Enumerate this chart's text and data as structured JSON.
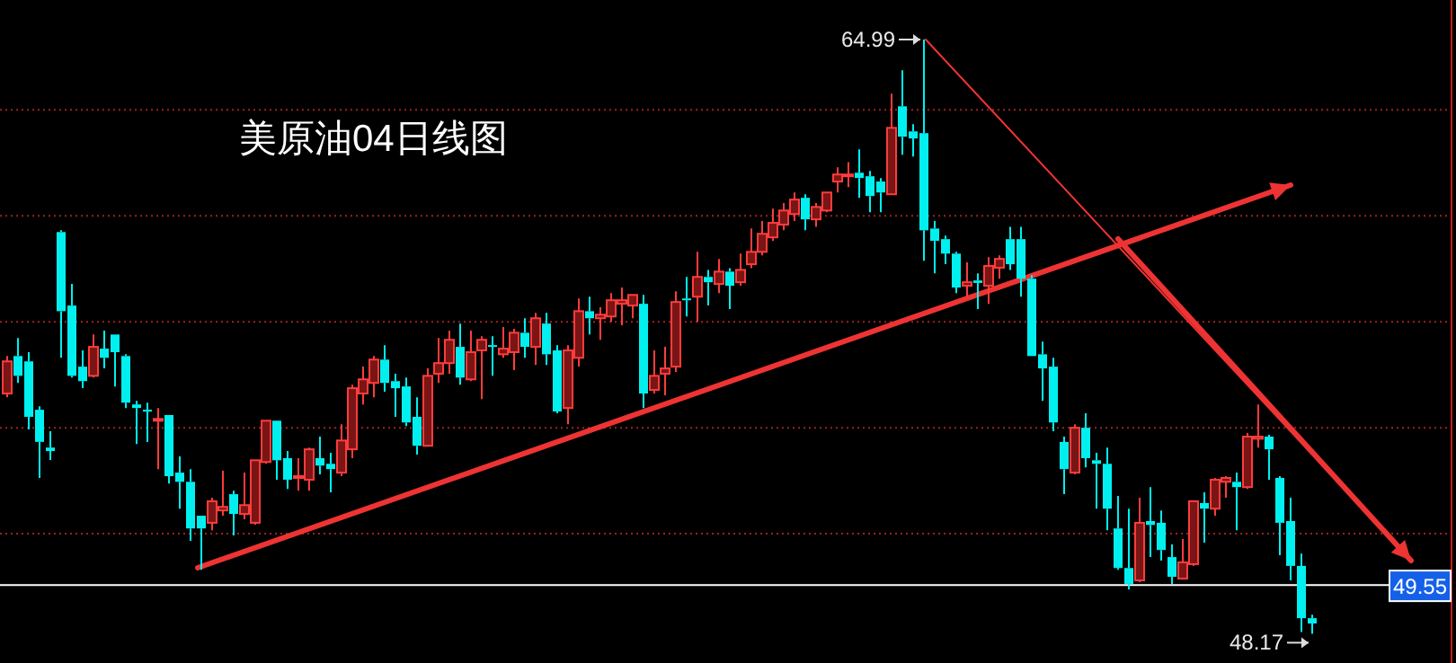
{
  "chart_data": {
    "type": "candlestick",
    "title": "美原油04日线图",
    "categories": [
      null,
      null,
      null,
      null,
      null,
      null,
      null,
      null,
      null,
      null,
      null,
      null,
      null,
      null,
      null,
      null,
      null,
      null,
      null,
      null,
      null,
      null,
      null,
      null,
      null,
      null,
      null,
      null,
      null,
      null,
      null,
      null,
      null,
      null,
      null,
      null,
      null,
      null,
      null,
      null,
      null,
      null,
      null,
      null,
      null,
      null,
      null,
      null,
      null,
      null,
      null,
      null,
      null,
      null,
      null,
      null,
      null,
      null,
      null,
      null,
      null,
      null,
      null,
      null,
      null,
      null,
      null,
      null,
      null,
      null,
      null,
      null,
      null,
      null,
      null,
      null,
      null,
      null,
      null,
      null,
      null,
      null,
      null,
      null,
      null,
      null,
      null,
      null,
      null,
      null,
      null,
      null,
      null,
      null,
      null,
      null,
      null,
      null,
      null,
      null,
      null,
      null,
      null,
      null,
      null,
      null,
      null,
      null,
      null,
      null,
      null,
      null,
      null,
      null,
      null,
      null,
      null,
      null,
      null,
      null,
      null,
      null
    ],
    "ohlc": [
      [
        54.97,
        56.03,
        54.86,
        55.88
      ],
      [
        56.03,
        56.54,
        55.27,
        55.47
      ],
      [
        55.88,
        56.14,
        53.95,
        54.31
      ],
      [
        54.51,
        54.61,
        52.58,
        53.6
      ],
      [
        53.44,
        53.9,
        53.09,
        53.34
      ],
      [
        59.54,
        59.59,
        55.98,
        57.3
      ],
      [
        57.46,
        58.07,
        55.42,
        55.47
      ],
      [
        55.73,
        56.19,
        55.12,
        55.32
      ],
      [
        55.47,
        56.64,
        55.42,
        56.29
      ],
      [
        56.24,
        56.75,
        55.68,
        55.98
      ],
      [
        56.64,
        56.64,
        55.17,
        56.14
      ],
      [
        56.03,
        56.08,
        54.56,
        54.71
      ],
      [
        54.66,
        54.76,
        53.54,
        54.56
      ],
      [
        54.51,
        54.71,
        53.6,
        54.46
      ],
      [
        54.2,
        54.56,
        52.83,
        54.25
      ],
      [
        54.36,
        54.36,
        52.42,
        52.63
      ],
      [
        52.73,
        53.19,
        51.71,
        52.47
      ],
      [
        52.47,
        52.83,
        50.8,
        51.15
      ],
      [
        51.51,
        51.51,
        49.98,
        51.15
      ],
      [
        51.31,
        52.02,
        51.1,
        51.92
      ],
      [
        51.66,
        52.78,
        51.51,
        51.76
      ],
      [
        52.12,
        52.22,
        50.95,
        51.56
      ],
      [
        51.56,
        52.73,
        51.41,
        51.81
      ],
      [
        51.31,
        53.08,
        51.26,
        53.08
      ],
      [
        53.03,
        54.2,
        52.98,
        54.2
      ],
      [
        54.2,
        54.2,
        52.53,
        53.08
      ],
      [
        53.14,
        53.34,
        52.27,
        52.53
      ],
      [
        52.58,
        53.14,
        52.22,
        52.63
      ],
      [
        52.53,
        53.44,
        52.22,
        53.39
      ],
      [
        53.14,
        53.75,
        52.68,
        52.93
      ],
      [
        52.98,
        53.29,
        52.17,
        52.83
      ],
      [
        52.73,
        54.1,
        52.63,
        53.64
      ],
      [
        53.39,
        55.22,
        53.14,
        55.12
      ],
      [
        54.97,
        55.73,
        54.66,
        55.37
      ],
      [
        55.27,
        56.03,
        54.86,
        55.93
      ],
      [
        55.93,
        56.34,
        55.02,
        55.27
      ],
      [
        55.32,
        55.53,
        54.31,
        55.12
      ],
      [
        55.17,
        55.42,
        54.05,
        54.15
      ],
      [
        54.31,
        54.86,
        53.24,
        53.49
      ],
      [
        53.49,
        55.68,
        53.49,
        55.47
      ],
      [
        55.53,
        56.54,
        55.27,
        55.83
      ],
      [
        55.83,
        56.75,
        55.53,
        56.49
      ],
      [
        56.29,
        56.95,
        55.22,
        55.42
      ],
      [
        55.37,
        56.75,
        55.32,
        56.14
      ],
      [
        56.19,
        56.59,
        54.81,
        56.49
      ],
      [
        56.34,
        56.59,
        55.47,
        56.29
      ],
      [
        56.08,
        56.85,
        55.98,
        56.24
      ],
      [
        56.14,
        56.8,
        55.63,
        56.69
      ],
      [
        56.69,
        57.1,
        55.98,
        56.29
      ],
      [
        56.29,
        57.25,
        55.78,
        57.1
      ],
      [
        56.95,
        57.25,
        55.78,
        56.08
      ],
      [
        56.19,
        56.34,
        54.41,
        54.46
      ],
      [
        54.56,
        56.34,
        54.1,
        56.19
      ],
      [
        55.98,
        57.66,
        55.73,
        57.3
      ],
      [
        57.3,
        57.71,
        56.64,
        57.1
      ],
      [
        57.1,
        57.41,
        56.49,
        57.2
      ],
      [
        57.15,
        57.81,
        57.0,
        57.61
      ],
      [
        57.51,
        57.97,
        56.9,
        57.61
      ],
      [
        57.46,
        57.76,
        57.1,
        57.76
      ],
      [
        57.51,
        57.76,
        54.56,
        54.97
      ],
      [
        55.07,
        56.19,
        54.97,
        55.47
      ],
      [
        55.53,
        56.29,
        54.92,
        55.68
      ],
      [
        55.73,
        57.86,
        55.58,
        57.56
      ],
      [
        57.66,
        58.27,
        57.15,
        57.61
      ],
      [
        57.71,
        58.98,
        57.0,
        58.27
      ],
      [
        58.27,
        58.47,
        57.46,
        58.12
      ],
      [
        58.07,
        58.78,
        57.81,
        58.42
      ],
      [
        58.42,
        58.52,
        57.36,
        58.02
      ],
      [
        58.12,
        58.93,
        58.02,
        58.47
      ],
      [
        58.63,
        59.64,
        58.52,
        58.98
      ],
      [
        58.98,
        59.85,
        58.88,
        59.49
      ],
      [
        59.39,
        60.2,
        59.29,
        59.8
      ],
      [
        59.75,
        60.36,
        59.59,
        60.15
      ],
      [
        60.05,
        60.66,
        59.85,
        60.46
      ],
      [
        60.51,
        60.61,
        59.59,
        59.9
      ],
      [
        59.9,
        60.36,
        59.69,
        60.25
      ],
      [
        60.15,
        60.66,
        60.1,
        60.66
      ],
      [
        60.97,
        61.37,
        60.66,
        61.17
      ],
      [
        61.12,
        61.52,
        60.81,
        61.17
      ],
      [
        61.22,
        61.88,
        60.51,
        61.07
      ],
      [
        61.12,
        61.27,
        60.1,
        60.56
      ],
      [
        60.97,
        61.07,
        60.1,
        60.66
      ],
      [
        60.61,
        63.46,
        60.61,
        62.49
      ],
      [
        63.1,
        64.12,
        61.73,
        62.24
      ],
      [
        62.39,
        62.59,
        61.68,
        62.19
      ],
      [
        62.34,
        64.99,
        58.73,
        59.59
      ],
      [
        59.64,
        59.85,
        58.37,
        59.29
      ],
      [
        59.34,
        59.44,
        58.63,
        58.93
      ],
      [
        58.93,
        58.98,
        57.81,
        57.97
      ],
      [
        58.02,
        58.68,
        57.71,
        58.12
      ],
      [
        58.17,
        58.37,
        57.36,
        58.1
      ],
      [
        58.02,
        58.83,
        57.51,
        58.58
      ],
      [
        58.53,
        58.88,
        58.22,
        58.78
      ],
      [
        59.34,
        59.69,
        58.47,
        58.63
      ],
      [
        59.34,
        59.69,
        57.71,
        58.22
      ],
      [
        58.22,
        58.32,
        56.03,
        56.03
      ],
      [
        56.08,
        56.44,
        54.76,
        55.68
      ],
      [
        55.73,
        55.98,
        53.9,
        54.15
      ],
      [
        53.6,
        53.75,
        52.12,
        52.83
      ],
      [
        52.73,
        54.1,
        52.68,
        54.0
      ],
      [
        54.0,
        54.41,
        52.88,
        53.14
      ],
      [
        53.08,
        53.29,
        51.71,
        52.98
      ],
      [
        52.98,
        53.44,
        51.1,
        51.71
      ],
      [
        51.15,
        52.07,
        49.98,
        50.03
      ],
      [
        50.03,
        51.71,
        49.42,
        49.58
      ],
      [
        49.68,
        52.02,
        49.63,
        51.31
      ],
      [
        51.36,
        52.32,
        50.34,
        51.25
      ],
      [
        51.31,
        51.66,
        50.24,
        50.54
      ],
      [
        50.34,
        50.7,
        49.58,
        49.78
      ],
      [
        49.73,
        50.85,
        49.73,
        50.19
      ],
      [
        50.14,
        51.92,
        50.09,
        51.92
      ],
      [
        51.87,
        52.17,
        50.75,
        51.71
      ],
      [
        51.71,
        52.58,
        51.51,
        52.53
      ],
      [
        52.47,
        52.63,
        52.02,
        52.58
      ],
      [
        52.47,
        52.73,
        51.1,
        52.32
      ],
      [
        52.32,
        53.85,
        52.27,
        53.75
      ],
      [
        53.69,
        54.66,
        53.44,
        53.75
      ],
      [
        53.75,
        53.8,
        52.53,
        53.39
      ],
      [
        52.58,
        52.63,
        50.39,
        51.31
      ],
      [
        51.36,
        52.02,
        49.68,
        50.09
      ],
      [
        50.09,
        50.44,
        48.22,
        48.61
      ],
      [
        48.61,
        48.71,
        48.17,
        48.46
      ]
    ],
    "yticks": [
      {
        "value": 51,
        "label": null
      },
      {
        "value": 54,
        "label": null
      },
      {
        "value": 57,
        "label": null
      },
      {
        "value": 60,
        "label": null
      },
      {
        "value": 63,
        "label": null
      }
    ],
    "grid": "y",
    "ref_lines": [
      {
        "axis": "y",
        "value": 49.55,
        "label": "49.55",
        "color": "#ffffff"
      }
    ],
    "annotations": [
      "64.99",
      "48.17"
    ]
  }
}
